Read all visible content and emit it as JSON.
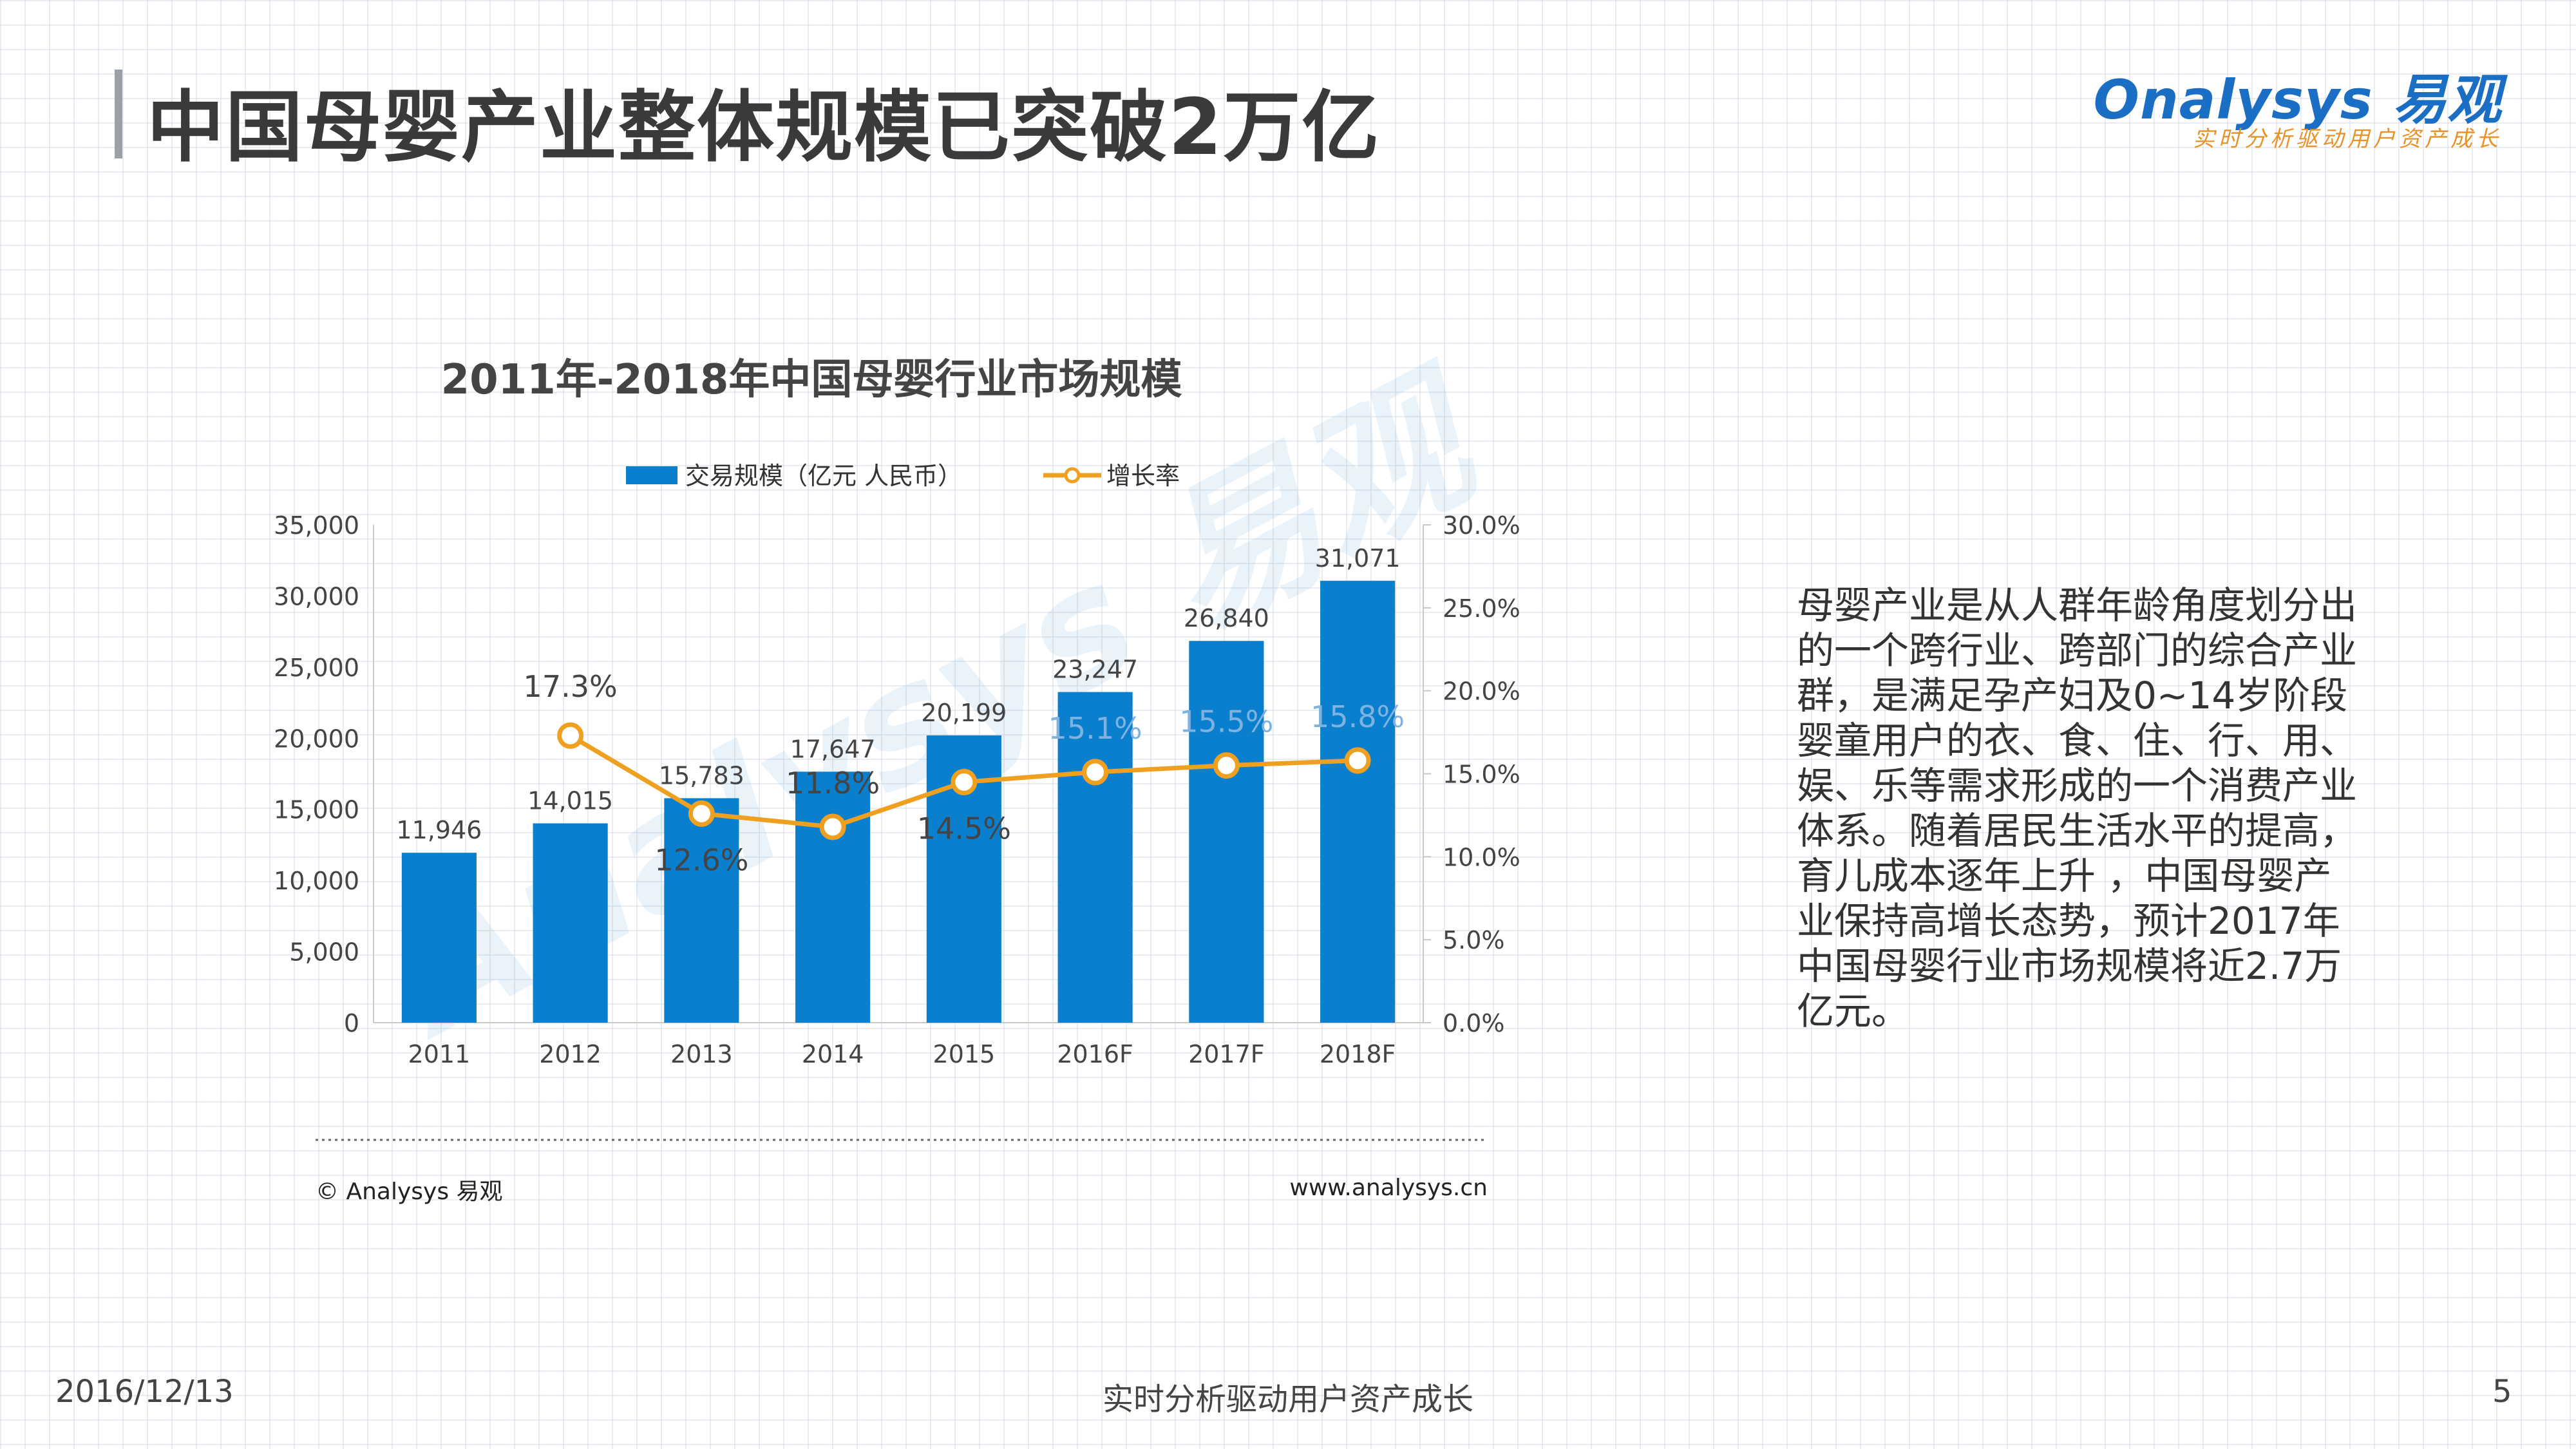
{
  "page_title": "中国母婴产业整体规模已突破2万亿",
  "logo": {
    "brand": "nalysys 易观",
    "brand_o": "O",
    "tagline": "实时分析驱动用户资产成长"
  },
  "watermark": "Analysys 易观",
  "chart_data": {
    "type": "bar+line",
    "title": "2011年-2018年中国母婴行业市场规模",
    "categories": [
      "2011",
      "2012",
      "2013",
      "2014",
      "2015",
      "2016F",
      "2017F",
      "2018F"
    ],
    "series": [
      {
        "name": "交易规模（亿元 人民币）",
        "type": "bar",
        "axis": "left",
        "values": [
          11946,
          14015,
          15783,
          17647,
          20199,
          23247,
          26840,
          31071
        ],
        "labels": [
          "11,946",
          "14,015",
          "15,783",
          "17,647",
          "20,199",
          "23,247",
          "26,840",
          "31,071"
        ]
      },
      {
        "name": "增长率",
        "type": "line",
        "axis": "right",
        "values": [
          null,
          17.3,
          12.6,
          11.8,
          14.5,
          15.1,
          15.5,
          15.8
        ],
        "labels": [
          "",
          "17.3%",
          "12.6%",
          "11.8%",
          "14.5%",
          "15.1%",
          "15.5%",
          "15.8%"
        ]
      }
    ],
    "left_axis": {
      "ylim": [
        0,
        35000
      ],
      "ticks": [
        "0",
        "5,000",
        "10,000",
        "15,000",
        "20,000",
        "25,000",
        "30,000",
        "35,000"
      ]
    },
    "right_axis": {
      "ylim": [
        0,
        30
      ],
      "ticks": [
        "0.0%",
        "5.0%",
        "10.0%",
        "15.0%",
        "20.0%",
        "25.0%",
        "30.0%"
      ]
    },
    "legend_position": "top-center",
    "colors": {
      "bar": "#0a7fcd",
      "line": "#f0a020",
      "marker_fill": "#ffffff"
    },
    "source": "© Analysys 易观",
    "url": "www.analysys.cn"
  },
  "description": "母婴产业是从人群年龄角度划分出的一个跨行业、跨部门的综合产业群，是满足孕产妇及0~14岁阶段婴童用户的衣、食、住、行、用、娱、乐等需求形成的一个消费产业体系。随着居民生活水平的提高，育儿成本逐年上升 ，中国母婴产业保持高增长态势，预计2017年中国母婴行业市场规模将近2.7万亿元。",
  "footer": {
    "date": "2016/12/13",
    "tagline": "实时分析驱动用户资产成长",
    "page_number": "5"
  }
}
